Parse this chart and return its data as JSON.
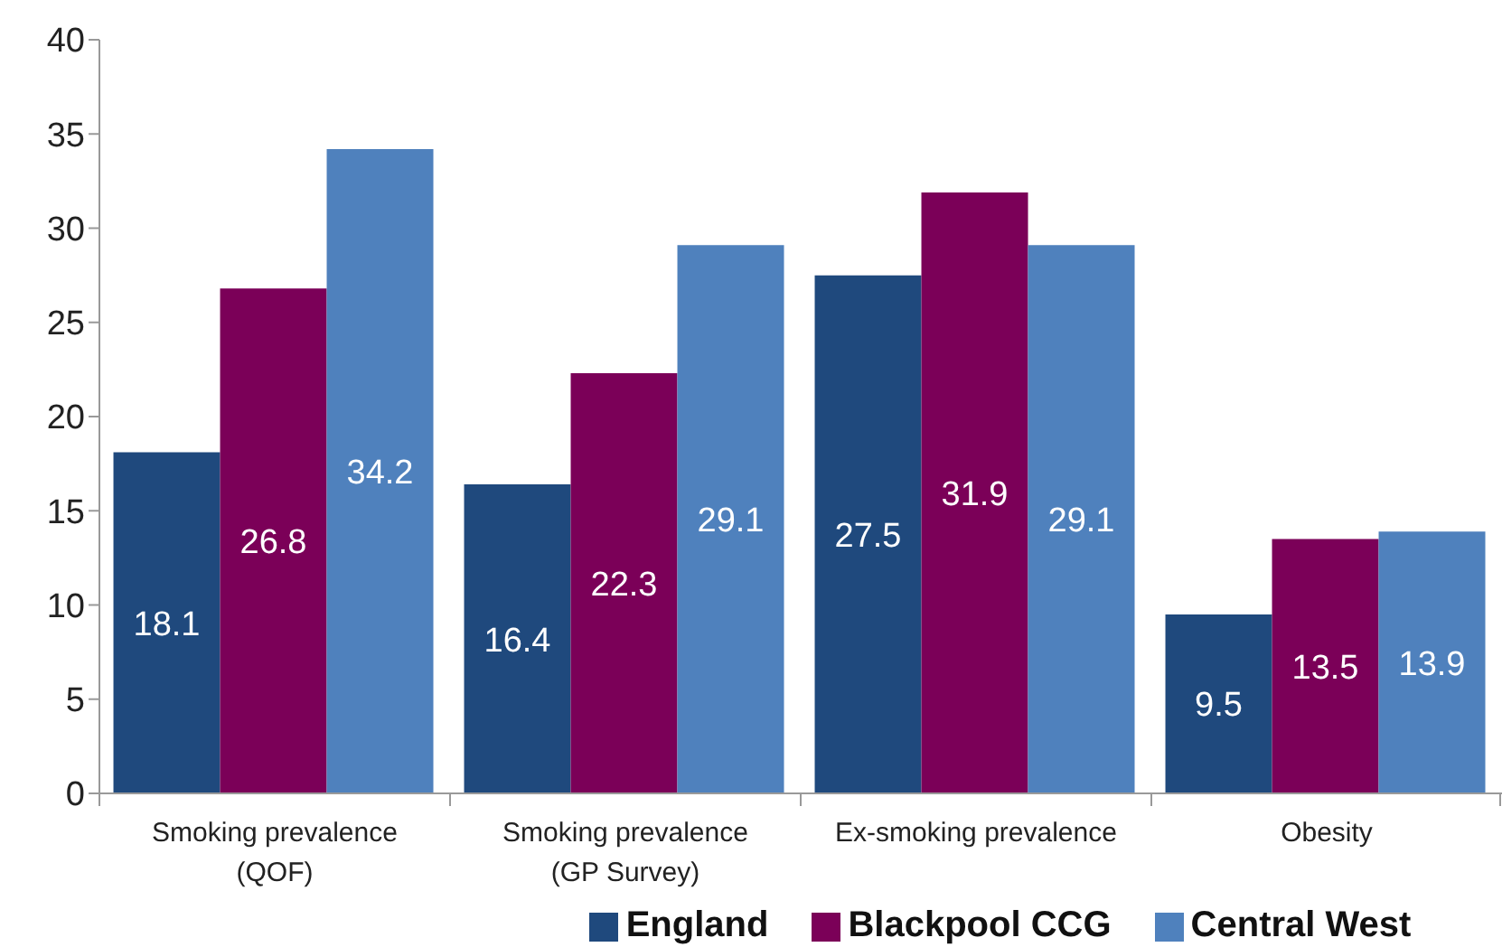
{
  "chart_data": {
    "type": "bar",
    "categories": [
      "Smoking prevalence (QOF)",
      "Smoking prevalence (GP Survey)",
      "Ex-smoking prevalence",
      "Obesity"
    ],
    "series": [
      {
        "name": "England",
        "color": "#1f497d",
        "values": [
          18.1,
          16.4,
          27.5,
          9.5
        ]
      },
      {
        "name": "Blackpool CCG",
        "color": "#7b0058",
        "values": [
          26.8,
          22.3,
          31.9,
          13.5
        ]
      },
      {
        "name": "Central West",
        "color": "#4f81bd",
        "values": [
          34.2,
          29.1,
          29.1,
          13.9
        ]
      }
    ],
    "ylim": [
      0,
      40
    ],
    "yticks": [
      0,
      5,
      10,
      15,
      20,
      25,
      30,
      35,
      40
    ],
    "grid": false,
    "legend": "bottom",
    "data_labels": true
  }
}
